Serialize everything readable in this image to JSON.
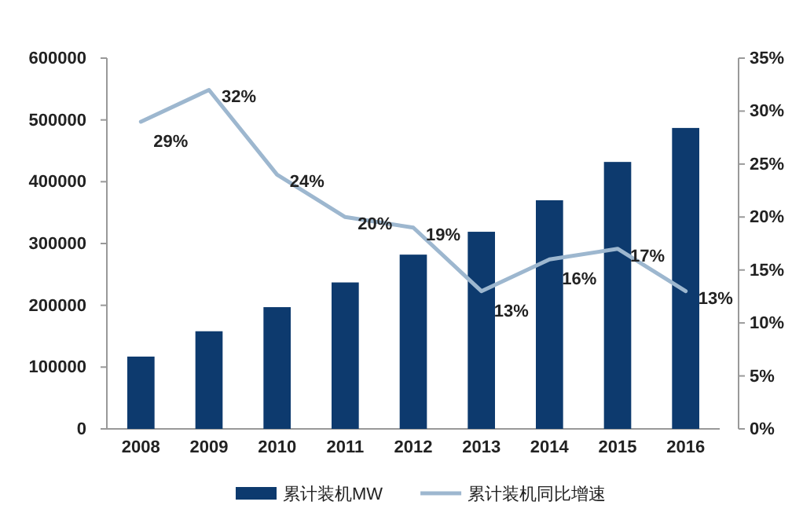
{
  "chart_data": {
    "type": "bar",
    "categories": [
      "2008",
      "2009",
      "2010",
      "2011",
      "2012",
      "2013",
      "2014",
      "2015",
      "2016"
    ],
    "series": [
      {
        "name": "累计装机MW",
        "color": "#0d3a6e",
        "values": [
          117000,
          158000,
          197000,
          237000,
          282000,
          319000,
          370000,
          432000,
          487000
        ]
      },
      {
        "name": "累计装机同比增速",
        "type": "line",
        "axis": "y2",
        "color": "#9db7cf",
        "values": [
          29,
          32,
          24,
          20,
          19,
          13,
          16,
          17,
          13
        ],
        "value_labels": [
          "29%",
          "32%",
          "24%",
          "20%",
          "19%",
          "13%",
          "16%",
          "17%",
          "13%"
        ]
      }
    ],
    "ylim": [
      0,
      600000
    ],
    "yticks": [
      0,
      100000,
      200000,
      300000,
      400000,
      500000,
      600000
    ],
    "y2lim": [
      0,
      35
    ],
    "y2ticks": [
      {
        "value": 0,
        "label": "0%"
      },
      {
        "value": 5,
        "label": "5%"
      },
      {
        "value": 10,
        "label": "10%"
      },
      {
        "value": 15,
        "label": "15%"
      },
      {
        "value": 20,
        "label": "20%"
      },
      {
        "value": 25,
        "label": "25%"
      },
      {
        "value": 30,
        "label": "30%"
      },
      {
        "value": 35,
        "label": "35%"
      }
    ],
    "legend": "bottom",
    "grid": false,
    "marker": "none",
    "line_style": "solid"
  }
}
